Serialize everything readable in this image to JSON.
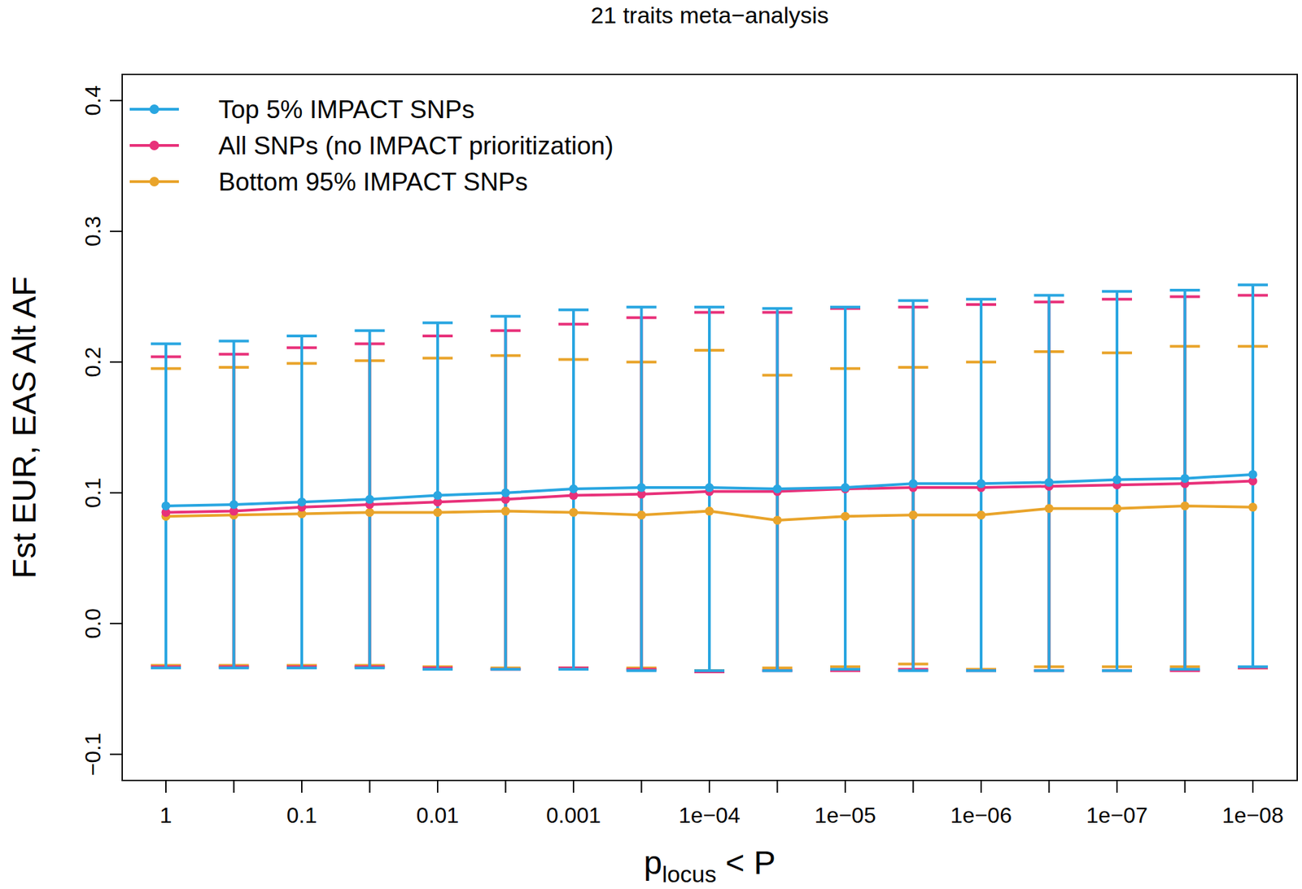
{
  "chart_data": {
    "type": "line",
    "title": "21 traits meta−analysis",
    "xlabel": [
      "p",
      "locus",
      " < P"
    ],
    "ylabel": "Fst EUR, EAS Alt AF",
    "categories": [
      "1",
      null,
      "0.1",
      null,
      "0.01",
      null,
      "0.001",
      null,
      "1e−04",
      null,
      "1e−05",
      null,
      "1e−06",
      null,
      "1e−07",
      null,
      "1e−08"
    ],
    "ylim": [
      -0.12,
      0.42
    ],
    "yticks": [
      {
        "value": -0.1,
        "label": "−0.1"
      },
      {
        "value": 0,
        "label": "0.0"
      },
      0.1,
      0.2,
      0.3,
      0.4
    ],
    "legend": "top-left",
    "marker": "circle",
    "series": [
      {
        "name": "Top 5% IMPACT SNPs",
        "color": "#29a6e1",
        "values": [
          0.09,
          0.091,
          0.093,
          0.095,
          0.098,
          0.1,
          0.103,
          0.104,
          0.104,
          0.103,
          0.104,
          0.107,
          0.107,
          0.108,
          0.11,
          0.111,
          0.114
        ],
        "upper": [
          0.214,
          0.216,
          0.22,
          0.224,
          0.23,
          0.235,
          0.24,
          0.242,
          0.242,
          0.241,
          0.242,
          0.247,
          0.248,
          0.251,
          0.254,
          0.255,
          0.259
        ],
        "lower": [
          -0.034,
          -0.034,
          -0.034,
          -0.034,
          -0.035,
          -0.035,
          -0.035,
          -0.036,
          -0.036,
          -0.036,
          -0.035,
          -0.036,
          -0.036,
          -0.036,
          -0.036,
          -0.035,
          -0.033
        ]
      },
      {
        "name": "All SNPs (no IMPACT prioritization)",
        "color": "#e8317a",
        "values": [
          0.085,
          0.086,
          0.089,
          0.091,
          0.093,
          0.095,
          0.098,
          0.099,
          0.101,
          0.101,
          0.103,
          0.104,
          0.104,
          0.105,
          0.106,
          0.107,
          0.109
        ],
        "upper": [
          0.204,
          0.206,
          0.211,
          0.214,
          0.22,
          0.224,
          0.229,
          0.234,
          0.238,
          0.238,
          0.241,
          0.242,
          0.244,
          0.246,
          0.248,
          0.25,
          0.251
        ],
        "lower": [
          -0.033,
          -0.033,
          -0.033,
          -0.033,
          -0.034,
          -0.035,
          -0.034,
          -0.035,
          -0.037,
          -0.036,
          -0.036,
          -0.035,
          -0.036,
          -0.036,
          -0.036,
          -0.036,
          -0.034
        ]
      },
      {
        "name": "Bottom 95% IMPACT SNPs",
        "color": "#e9a42b",
        "values": [
          0.082,
          0.083,
          0.084,
          0.085,
          0.085,
          0.086,
          0.085,
          0.083,
          0.086,
          0.079,
          0.082,
          0.083,
          0.083,
          0.088,
          0.088,
          0.09,
          0.089
        ],
        "upper": [
          0.195,
          0.196,
          0.199,
          0.201,
          0.203,
          0.205,
          0.202,
          0.2,
          0.209,
          0.19,
          0.195,
          0.196,
          0.2,
          0.208,
          0.207,
          0.212,
          0.212
        ],
        "lower": [
          -0.032,
          -0.032,
          -0.032,
          -0.032,
          -0.033,
          -0.034,
          -0.034,
          -0.034,
          -0.036,
          -0.034,
          -0.033,
          -0.031,
          -0.035,
          -0.033,
          -0.033,
          -0.033,
          -0.034
        ]
      }
    ]
  }
}
